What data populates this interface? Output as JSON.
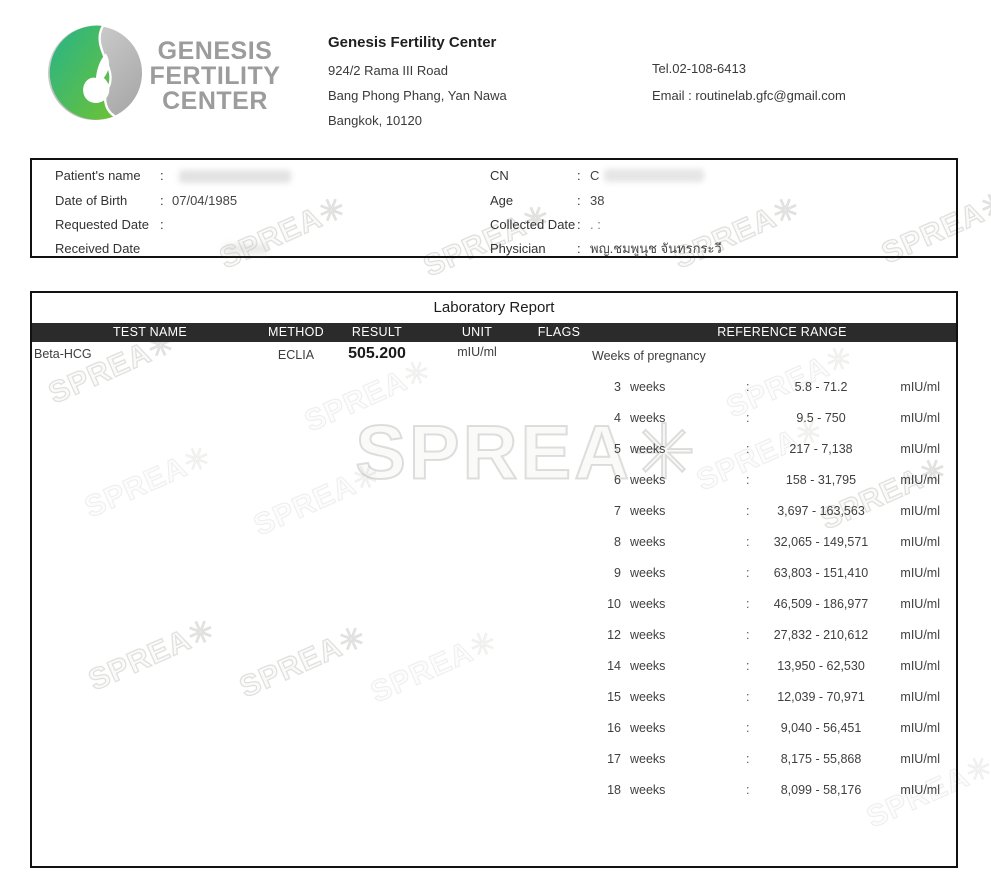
{
  "header": {
    "logo": {
      "lines": [
        "GENESIS",
        "FERTILITY",
        "CENTER"
      ]
    },
    "clinic_name": "Genesis Fertility Center",
    "address_lines": [
      "924/2 Rama III Road",
      "Bang Phong Phang, Yan Nawa",
      "Bangkok, 10120"
    ],
    "tel": "Tel.02-108-6413",
    "email": "Email : routinelab.gfc@gmail.com"
  },
  "patient_info": {
    "colon": ":",
    "left": {
      "name_label": "Patient's name",
      "dob_label": "Date of Birth",
      "dob_value": "07/04/1985",
      "requested_label": "Requested Date",
      "received_label": "Received Date"
    },
    "right": {
      "cn_label": "CN",
      "cn_value": "C",
      "age_label": "Age",
      "age_value": "38",
      "collected_label": "Collected Date",
      "collected_value": ".    :",
      "physician_label": "Physician",
      "physician_value": "พญ.ชมพูนุช จันทรกระวี"
    }
  },
  "report": {
    "title": "Laboratory Report",
    "columns": [
      "TEST NAME",
      "METHOD",
      "RESULT",
      "UNIT",
      "FLAGS",
      "REFERENCE RANGE"
    ],
    "result_row": {
      "test_name": "Beta-HCG",
      "method": "ECLIA",
      "result": "505.200",
      "unit": "mIU/ml",
      "reference_heading": "Weeks of pregnancy"
    },
    "weeks_word": "weeks",
    "colon": ":",
    "reference_rows": [
      {
        "weeks": "3",
        "range": "5.8 - 71.2",
        "unit": "mIU/ml"
      },
      {
        "weeks": "4",
        "range": "9.5 - 750",
        "unit": "mIU/ml"
      },
      {
        "weeks": "5",
        "range": "217 - 7,138",
        "unit": "mIU/ml"
      },
      {
        "weeks": "6",
        "range": "158 - 31,795",
        "unit": "mIU/ml"
      },
      {
        "weeks": "7",
        "range": "3,697 - 163,563",
        "unit": "mIU/ml"
      },
      {
        "weeks": "8",
        "range": "32,065 - 149,571",
        "unit": "mIU/ml"
      },
      {
        "weeks": "9",
        "range": "63,803 - 151,410",
        "unit": "mIU/ml"
      },
      {
        "weeks": "10",
        "range": "46,509 - 186,977",
        "unit": "mIU/ml"
      },
      {
        "weeks": "12",
        "range": "27,832 - 210,612",
        "unit": "mIU/ml"
      },
      {
        "weeks": "14",
        "range": "13,950 - 62,530",
        "unit": "mIU/ml"
      },
      {
        "weeks": "15",
        "range": "12,039 - 70,971",
        "unit": "mIU/ml"
      },
      {
        "weeks": "16",
        "range": "9,040 - 56,451",
        "unit": "mIU/ml"
      },
      {
        "weeks": "17",
        "range": "8,175 - 55,868",
        "unit": "mIU/ml"
      },
      {
        "weeks": "18",
        "range": "8,099 - 58,176",
        "unit": "mIU/ml"
      }
    ]
  },
  "watermark": {
    "text": "SPREA✳"
  }
}
